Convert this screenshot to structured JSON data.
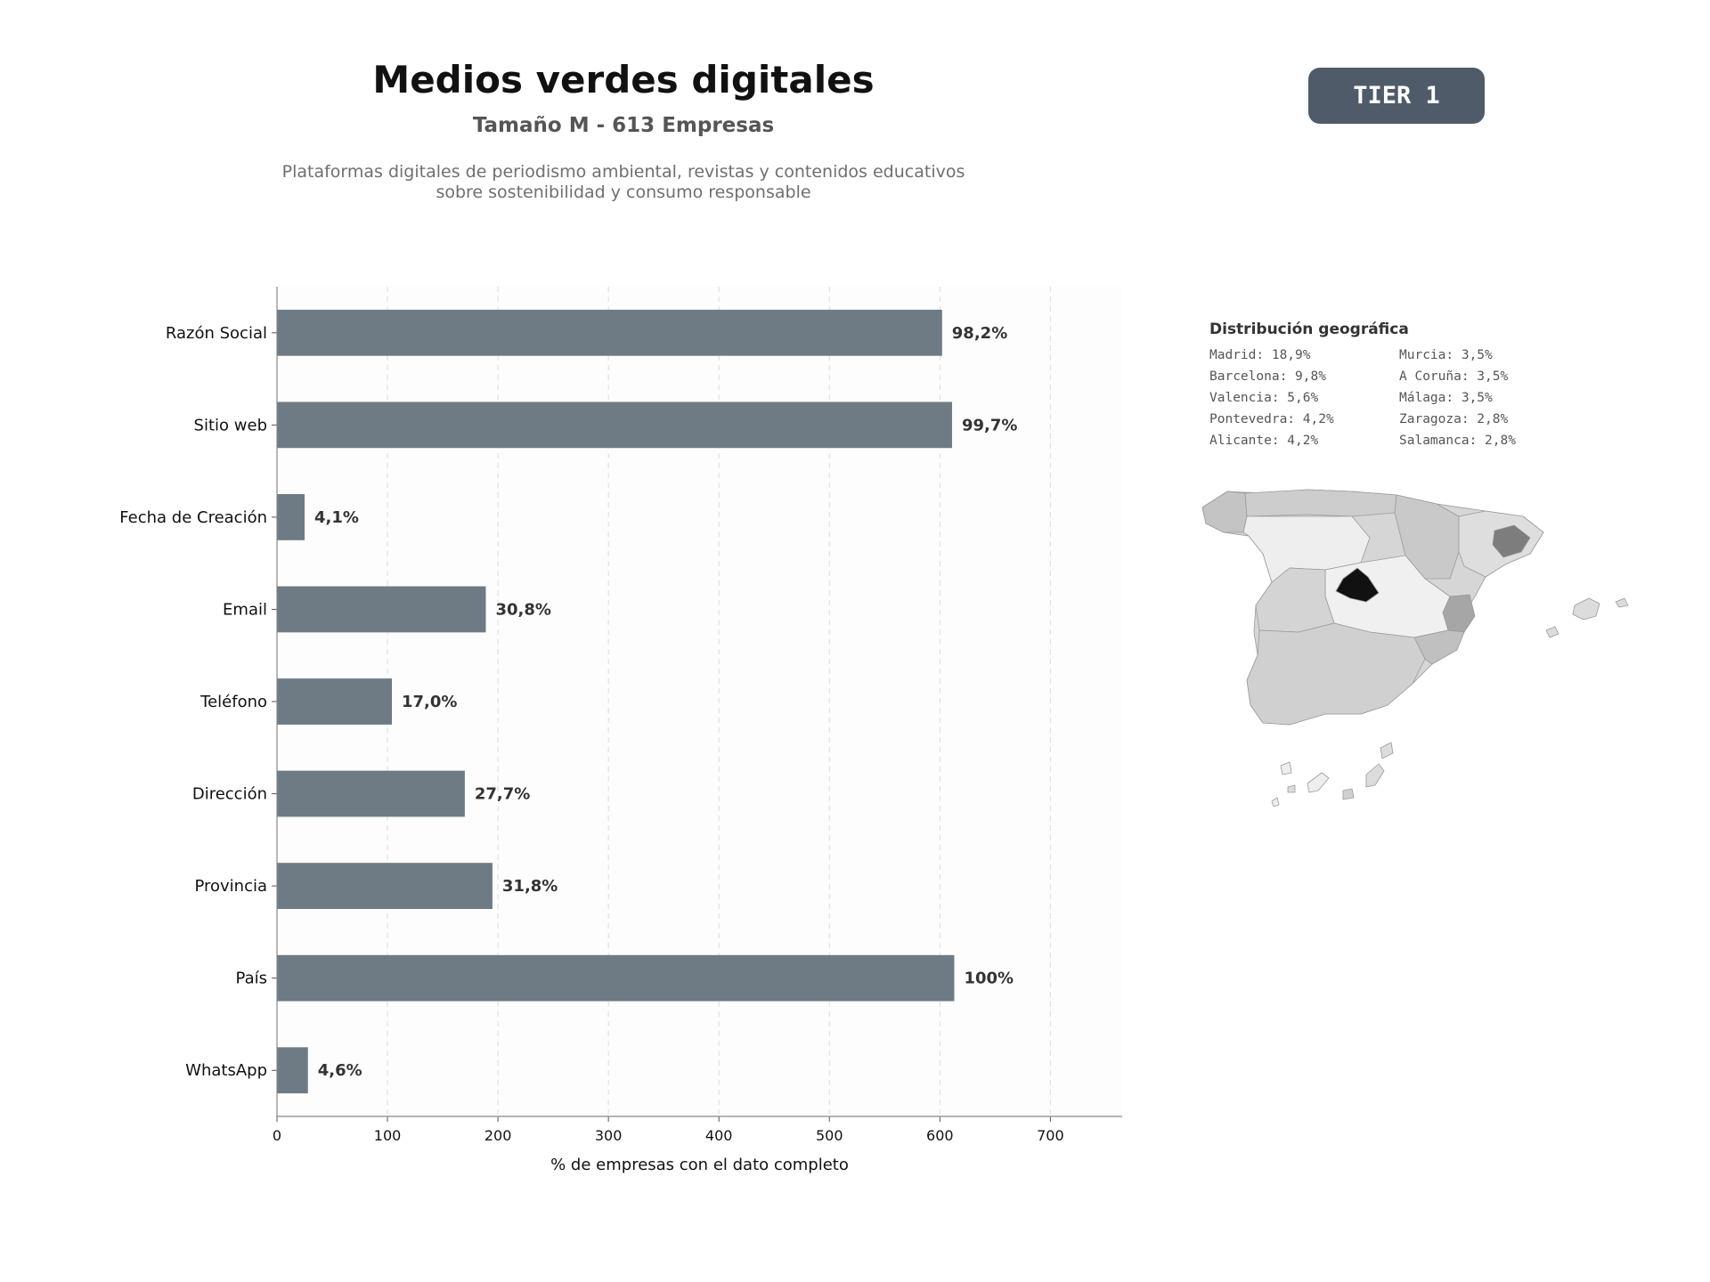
{
  "header": {
    "title": "Medios verdes digitales",
    "subtitle": "Tamaño M - 613 Empresas",
    "description": "Plataformas digitales de periodismo ambiental, revistas y contenidos educativos sobre sostenibilidad y consumo responsable"
  },
  "badge": {
    "label": "TIER 1"
  },
  "chart_data": {
    "type": "bar",
    "orientation": "horizontal",
    "categories": [
      "Razón Social",
      "Sitio web",
      "Fecha de Creación",
      "Email",
      "Teléfono",
      "Dirección",
      "Provincia",
      "País",
      "WhatsApp"
    ],
    "values": [
      602,
      611,
      25,
      189,
      104,
      170,
      195,
      613,
      28
    ],
    "data_labels": [
      "98,2%",
      "99,7%",
      "4,1%",
      "30,8%",
      "17,0%",
      "27,7%",
      "31,8%",
      "100%",
      "4,6%"
    ],
    "xlabel": "% de empresas con el dato completo",
    "ylabel": "",
    "xlim": [
      0,
      765
    ],
    "xticks": [
      0,
      100,
      200,
      300,
      400,
      500,
      600,
      700
    ],
    "grid": "x dashed",
    "colors": {
      "bar": "#6e7a84",
      "plot_bg": "#fdfdfd",
      "label": "#333333"
    }
  },
  "geo": {
    "title": "Distribución geográfica",
    "items": [
      "Madrid: 18,9%",
      "Murcia: 3,5%",
      "Barcelona: 9,8%",
      "A Coruña: 3,5%",
      "Valencia: 5,6%",
      "Málaga: 3,5%",
      "Pontevedra: 4,2%",
      "Zaragoza: 2,8%",
      "Alicante: 4,2%",
      "Salamanca: 2,8%"
    ]
  },
  "map": {
    "description_colors": {
      "madrid": "#111111",
      "barcelona": "#7d7d7d",
      "valencia": "#a6a6a6",
      "default": "#d9d9d9",
      "light": "#efefef"
    }
  }
}
